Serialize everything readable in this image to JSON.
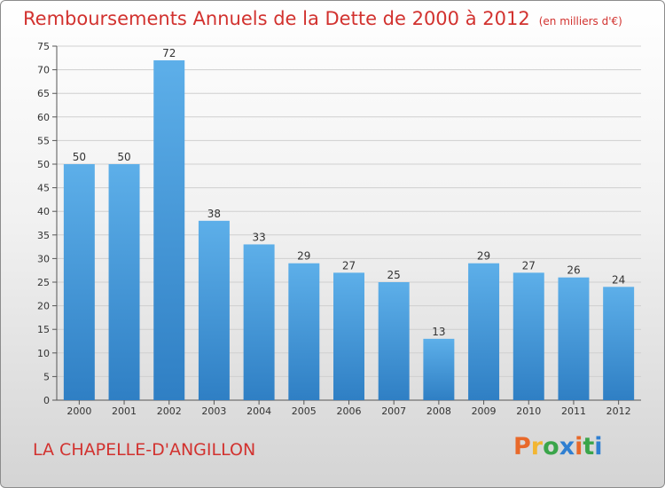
{
  "chart_data": {
    "type": "bar",
    "title": "Remboursements Annuels de la Dette de 2000 à 2012",
    "subtitle": "(en milliers d'€)",
    "categories": [
      "2000",
      "2001",
      "2002",
      "2003",
      "2004",
      "2005",
      "2006",
      "2007",
      "2008",
      "2009",
      "2010",
      "2011",
      "2012"
    ],
    "values": [
      50,
      50,
      72,
      38,
      33,
      29,
      27,
      25,
      13,
      29,
      27,
      26,
      24
    ],
    "ylim": [
      0,
      75
    ],
    "yticks": [
      0,
      5,
      10,
      15,
      20,
      25,
      30,
      35,
      40,
      45,
      50,
      55,
      60,
      65,
      70,
      75
    ],
    "xlabel": "",
    "ylabel": "",
    "grid": true,
    "bar_color": "#4a9fe0"
  },
  "footer": {
    "commune": "LA CHAPELLE-D'ANGILLON",
    "logo_text": "Proxiti",
    "logo_colors": [
      "#e8692a",
      "#f2b632",
      "#3aa54a",
      "#2f7fd1",
      "#e8692a",
      "#3aa54a",
      "#2f7fd1"
    ]
  },
  "colors": {
    "title": "#d2322f",
    "grid": "#cfcfcf",
    "axis": "#555555"
  }
}
